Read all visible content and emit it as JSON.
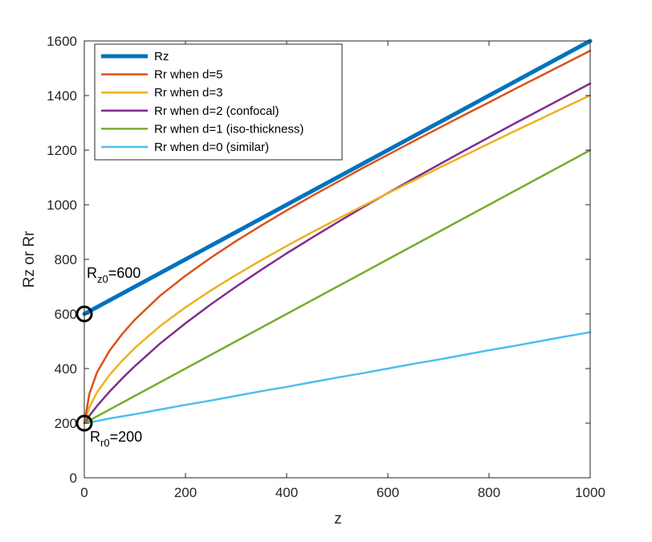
{
  "chart_data": {
    "type": "line",
    "title": "",
    "xlabel": "z",
    "ylabel": "Rz or Rr",
    "xlim": [
      0,
      1000
    ],
    "ylim": [
      0,
      1600
    ],
    "xticks": [
      0,
      200,
      400,
      600,
      800,
      1000
    ],
    "yticks": [
      0,
      200,
      400,
      600,
      800,
      1000,
      1200,
      1400,
      1600
    ],
    "grid": false,
    "legend_position": "top-left",
    "x": [
      0,
      10,
      25,
      50,
      75,
      100,
      150,
      200,
      250,
      300,
      350,
      400,
      450,
      500,
      550,
      600,
      650,
      700,
      750,
      800,
      850,
      900,
      950,
      1000
    ],
    "series": [
      {
        "name": "Rz",
        "color": "#0072BD",
        "width": "thick",
        "values": [
          600,
          610,
          625,
          650,
          675,
          700,
          750,
          800,
          850,
          900,
          950,
          1000,
          1050,
          1100,
          1150,
          1200,
          1250,
          1300,
          1350,
          1400,
          1450,
          1500,
          1550,
          1600
        ]
      },
      {
        "name": "Rr when d=5",
        "color": "#D95319",
        "width": "normal",
        "values": [
          200,
          307,
          386,
          466,
          527,
          579,
          667,
          740,
          806,
          867,
          924,
          979,
          1032,
          1083,
          1134,
          1183,
          1232,
          1280,
          1328,
          1375,
          1423,
          1470,
          1517,
          1564
        ]
      },
      {
        "name": "Rr when d=3",
        "color": "#EDB120",
        "width": "normal",
        "values": [
          200,
          258,
          313,
          377,
          429,
          476,
          556,
          624,
          686,
          743,
          797,
          849,
          899,
          947,
          995,
          1042,
          1088,
          1134,
          1179,
          1224,
          1269,
          1313,
          1357,
          1401
        ]
      },
      {
        "name": "Rr when d=2 (confocal)",
        "color": "#7E2F8E",
        "width": "normal",
        "values": [
          200,
          227,
          263,
          316,
          364,
          409,
          492,
          566,
          635,
          700,
          762,
          822,
          879,
          935,
          990,
          1043,
          1095,
          1146,
          1197,
          1247,
          1297,
          1346,
          1395,
          1444
        ]
      },
      {
        "name": "Rr when d=1 (iso-thickness)",
        "color": "#77AC30",
        "width": "normal",
        "values": [
          200,
          210,
          225,
          250,
          275,
          300,
          350,
          400,
          450,
          500,
          550,
          600,
          650,
          700,
          750,
          800,
          850,
          900,
          950,
          1000,
          1050,
          1100,
          1150,
          1200
        ]
      },
      {
        "name": "Rr when d=0 (similar)",
        "color": "#4DBEEE",
        "width": "normal",
        "values": [
          200,
          203,
          208,
          217,
          225,
          233,
          250,
          267,
          283,
          300,
          317,
          333,
          350,
          367,
          383,
          400,
          417,
          433,
          450,
          467,
          483,
          500,
          517,
          533
        ]
      }
    ],
    "markers": [
      {
        "name": "Rz0 marker",
        "x": 0,
        "y": 600
      },
      {
        "name": "Rr0 marker",
        "x": 0,
        "y": 200
      }
    ],
    "annotations": [
      {
        "base": "R",
        "sub": "z0",
        "rest": "=600"
      },
      {
        "base": "R",
        "sub": "r0",
        "rest": "=200"
      }
    ]
  }
}
